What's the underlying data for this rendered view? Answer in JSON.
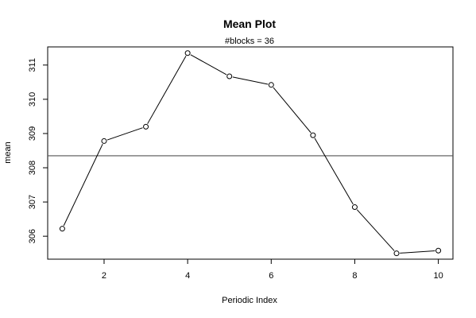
{
  "chart_data": {
    "type": "line",
    "title": "Mean Plot",
    "subtitle": "#blocks =  36",
    "xlabel": "Periodic Index",
    "ylabel": "mean",
    "x": [
      1,
      2,
      3,
      4,
      5,
      6,
      7,
      8,
      9,
      10
    ],
    "series": [
      {
        "values": [
          306.22,
          308.78,
          309.2,
          311.35,
          310.67,
          310.42,
          308.95,
          306.85,
          305.5,
          305.58
        ]
      }
    ],
    "reference_line": 308.35,
    "xlim": [
      0.65,
      10.35
    ],
    "ylim": [
      305.33,
      311.53
    ],
    "xticks": [
      2,
      4,
      6,
      8,
      10
    ],
    "yticks": [
      306,
      307,
      308,
      309,
      310,
      311
    ],
    "grid": false,
    "legend": "none",
    "markers": "open-circle",
    "line_color": "#000000",
    "reference_color": "#555555"
  }
}
